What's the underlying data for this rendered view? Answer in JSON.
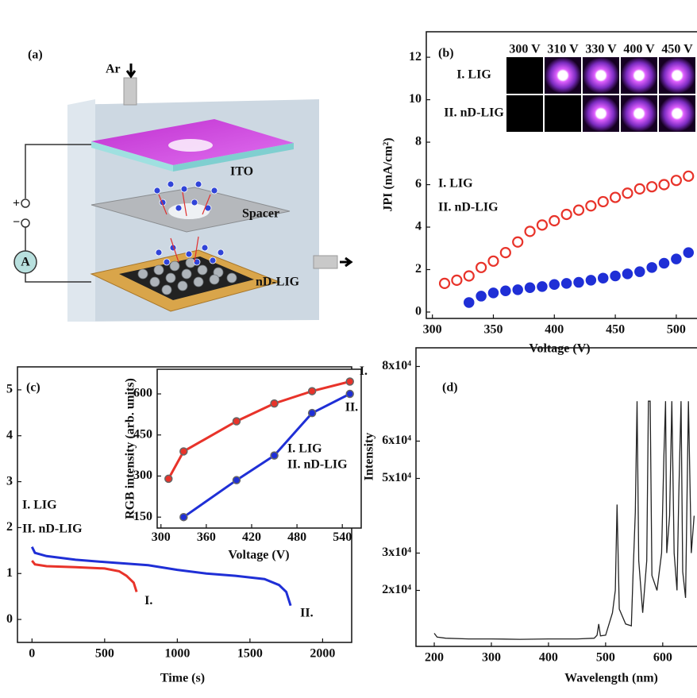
{
  "diagram": {
    "label": "(a)",
    "gas_in": "Ar",
    "layers": [
      "ITO",
      "Spacer",
      "nD-LIG"
    ],
    "plus": "+",
    "minus": "−",
    "meter": "A"
  },
  "chart_data": [
    {
      "type": "scatter",
      "panel_label": "(b)",
      "x_label": "Voltage (V)",
      "y_label": "JPI (mA/cm²)",
      "xlim": [
        295,
        517
      ],
      "ylim": [
        -0.3,
        13.2
      ],
      "xticks": [
        300,
        350,
        400,
        450,
        500
      ],
      "yticks": [
        0,
        2,
        4,
        6,
        8,
        10,
        12
      ],
      "inset_columns": [
        "300 V",
        "310 V",
        "330 V",
        "400 V",
        "450 V"
      ],
      "inset_rows": [
        "I. LIG",
        "II. nD-LIG"
      ],
      "series": [
        {
          "name": "I. LIG",
          "color": "#e8332a",
          "marker": "open",
          "x": [
            310,
            320,
            330,
            340,
            350,
            360,
            370,
            380,
            390,
            400,
            410,
            420,
            430,
            440,
            450,
            460,
            470,
            480,
            490,
            500,
            510
          ],
          "values": [
            1.35,
            1.5,
            1.7,
            2.1,
            2.4,
            2.8,
            3.3,
            3.8,
            4.1,
            4.3,
            4.6,
            4.8,
            5.0,
            5.2,
            5.4,
            5.6,
            5.8,
            5.9,
            6.0,
            6.2,
            6.4
          ]
        },
        {
          "name": "II. nD-LIG",
          "color": "#1f2fd6",
          "marker": "filled",
          "x": [
            330,
            340,
            350,
            360,
            370,
            380,
            390,
            400,
            410,
            420,
            430,
            440,
            450,
            460,
            470,
            480,
            490,
            500,
            510
          ],
          "values": [
            0.45,
            0.75,
            0.9,
            1.0,
            1.05,
            1.15,
            1.2,
            1.3,
            1.35,
            1.4,
            1.5,
            1.6,
            1.7,
            1.8,
            1.9,
            2.1,
            2.3,
            2.5,
            2.8
          ]
        }
      ]
    },
    {
      "type": "line",
      "panel_label": "(c)",
      "x_label": "Time (s)",
      "xlim": [
        -100,
        2200
      ],
      "ylim": [
        -0.5,
        5.5
      ],
      "xticks": [
        0,
        500,
        1000,
        1500,
        2000
      ],
      "yticks": [
        0,
        1,
        2,
        3,
        4,
        5
      ],
      "series": [
        {
          "name": "I. LIG",
          "end_label": "I.",
          "color": "#e8332a",
          "x": [
            0,
            20,
            100,
            300,
            500,
            600,
            650,
            700,
            720
          ],
          "values": [
            1.28,
            1.2,
            1.16,
            1.14,
            1.11,
            1.05,
            0.95,
            0.8,
            0.6
          ]
        },
        {
          "name": "II. nD-LIG",
          "end_label": "II.",
          "color": "#1f2fd6",
          "x": [
            0,
            20,
            100,
            300,
            500,
            800,
            1000,
            1200,
            1400,
            1600,
            1700,
            1750,
            1780
          ],
          "values": [
            1.58,
            1.45,
            1.38,
            1.3,
            1.25,
            1.18,
            1.08,
            1.0,
            0.95,
            0.88,
            0.75,
            0.6,
            0.3
          ]
        }
      ]
    },
    {
      "type": "line",
      "markers": true,
      "x_label": "Voltage (V)",
      "y_label": "RGB intensity (arb. units)",
      "xlim": [
        295,
        565
      ],
      "ylim": [
        110,
        690
      ],
      "xticks": [
        300,
        360,
        420,
        480,
        540
      ],
      "yticks": [
        150,
        300,
        450,
        600
      ],
      "series": [
        {
          "name": "I. LIG",
          "end_label": "I.",
          "color": "#e8332a",
          "x": [
            310,
            330,
            400,
            450,
            500,
            550
          ],
          "values": [
            290,
            390,
            500,
            565,
            610,
            645
          ]
        },
        {
          "name": "II. nD-LIG",
          "end_label": "II.",
          "color": "#1f2fd6",
          "x": [
            330,
            400,
            450,
            500,
            550
          ],
          "values": [
            150,
            285,
            375,
            530,
            600
          ]
        }
      ]
    },
    {
      "type": "line",
      "panel_label": "(d)",
      "x_label": "Wavelength (nm)",
      "y_label": "Intensity",
      "xlim": [
        168,
        660
      ],
      "ylim": [
        5000,
        85000
      ],
      "xticks": [
        200,
        300,
        400,
        500,
        600
      ],
      "yticks": [
        {
          "value": 20000,
          "label": "2x10⁴"
        },
        {
          "value": 30000,
          "label": "3x10⁴"
        },
        {
          "value": 50000,
          "label": "5x10⁴"
        },
        {
          "value": 60000,
          "label": "6x10⁴"
        },
        {
          "value": 80000,
          "label": "8x10⁴"
        }
      ],
      "series": [
        {
          "color": "#222222",
          "x": [
            200,
            205,
            220,
            260,
            300,
            350,
            400,
            450,
            480,
            485,
            488,
            491,
            500,
            512,
            517,
            520,
            524,
            535,
            545,
            548,
            552,
            555,
            558,
            565,
            572,
            575,
            578,
            581,
            590,
            598,
            602,
            605,
            607,
            612,
            616,
            620,
            625,
            628,
            632,
            635,
            640,
            645,
            650,
            655
          ],
          "values": [
            8500,
            7500,
            7200,
            7000,
            7000,
            6900,
            7000,
            7000,
            7200,
            8000,
            11000,
            7800,
            8000,
            14000,
            20000,
            43000,
            15000,
            11000,
            10500,
            24000,
            41000,
            70700,
            28000,
            14000,
            28000,
            70700,
            70700,
            24000,
            20000,
            30000,
            56000,
            70700,
            30000,
            40000,
            70700,
            30000,
            20000,
            45000,
            70700,
            25000,
            18000,
            70700,
            30000,
            40000
          ]
        }
      ]
    }
  ]
}
